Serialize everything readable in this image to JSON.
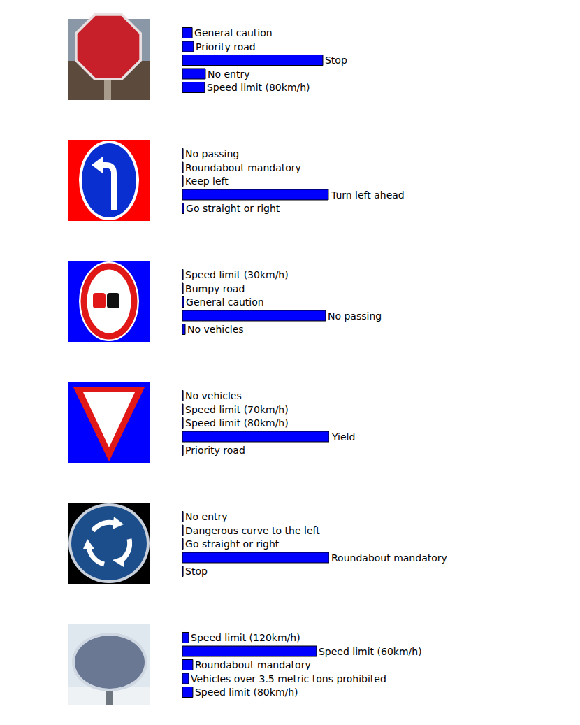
{
  "chart_data": [
    {
      "type": "bar",
      "orientation": "horizontal",
      "color": "#0000ff",
      "xlim": [
        0,
        1
      ],
      "tick_labels": false,
      "categories": [
        "General caution",
        "Priority road",
        "Stop",
        "No entry",
        "Speed limit (80km/h)"
      ],
      "values": [
        0.067,
        0.076,
        0.957,
        0.157,
        0.152
      ]
    },
    {
      "type": "bar",
      "orientation": "horizontal",
      "color": "#0000ff",
      "xlim": [
        0,
        1
      ],
      "tick_labels": false,
      "categories": [
        "No passing",
        "Roundabout mandatory",
        "Keep left",
        "Turn left ahead",
        "Go straight or right"
      ],
      "values": [
        0.005,
        0.005,
        0.005,
        0.995,
        0.01
      ]
    },
    {
      "type": "bar",
      "orientation": "horizontal",
      "color": "#0000ff",
      "xlim": [
        0,
        1
      ],
      "tick_labels": false,
      "categories": [
        "Speed limit (30km/h)",
        "Bumpy road",
        "General caution",
        "No passing",
        "No vehicles"
      ],
      "values": [
        0.005,
        0.005,
        0.01,
        0.976,
        0.019
      ]
    },
    {
      "type": "bar",
      "orientation": "horizontal",
      "color": "#0000ff",
      "xlim": [
        0,
        1
      ],
      "tick_labels": false,
      "categories": [
        "No vehicles",
        "Speed limit (70km/h)",
        "Speed limit (80km/h)",
        "Yield",
        "Priority road"
      ],
      "values": [
        0.005,
        0.005,
        0.005,
        1.0,
        0.005
      ]
    },
    {
      "type": "bar",
      "orientation": "horizontal",
      "color": "#0000ff",
      "xlim": [
        0,
        1
      ],
      "tick_labels": false,
      "categories": [
        "No entry",
        "Dangerous curve to the left",
        "Go straight or right",
        "Roundabout mandatory",
        "Stop"
      ],
      "values": [
        0.005,
        0.005,
        0.005,
        1.0,
        0.005
      ]
    },
    {
      "type": "bar",
      "orientation": "horizontal",
      "color": "#0000ff",
      "xlim": [
        0,
        1
      ],
      "tick_labels": false,
      "categories": [
        "Speed limit (120km/h)",
        "Speed limit (60km/h)",
        "Roundabout mandatory",
        "Vehicles over 3.5 metric tons prohibited",
        "Speed limit (80km/h)"
      ],
      "values": [
        0.043,
        0.914,
        0.071,
        0.043,
        0.071
      ]
    }
  ]
}
